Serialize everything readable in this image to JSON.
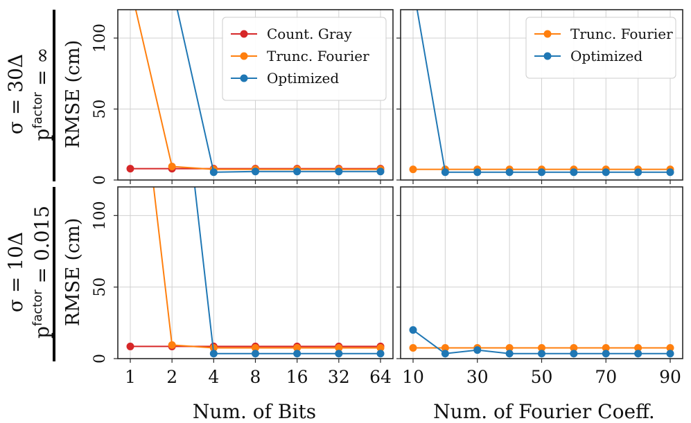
{
  "figure": {
    "row_labels": [
      {
        "line1": "σ = 30Δ",
        "line2": "p",
        "line2_sup": "factor",
        "line2_tail": " = ∞"
      },
      {
        "line1": "σ = 10Δ",
        "line2": "p",
        "line2_sup": "factor",
        "line2_tail": " = 0.015"
      }
    ],
    "ylabel": "RMSE (cm)",
    "xlabel_left": "Num. of Bits",
    "xlabel_right": "Num. of Fourier Coeff.",
    "colors": {
      "count_gray": "#d62728",
      "trunc_fourier": "#ff7f0e",
      "optimized": "#1f77b4",
      "grid": "#d0d0d0",
      "frame": "#262626"
    }
  },
  "chart_data": [
    {
      "type": "line",
      "panel": "top-left",
      "x_scale": "log2",
      "x": [
        1,
        2,
        4,
        8,
        16,
        32,
        64
      ],
      "xticks": [
        "1",
        "2",
        "4",
        "8",
        "16",
        "32",
        "64"
      ],
      "ylim": [
        0,
        120
      ],
      "yticks": [
        "0",
        "50",
        "100"
      ],
      "grid": true,
      "legend": "top-right",
      "series": [
        {
          "name": "Count. Gray",
          "color": "#d62728",
          "values": [
            8,
            8,
            8,
            8,
            8,
            8,
            8
          ]
        },
        {
          "name": "Trunc. Fourier",
          "color": "#ff7f0e",
          "values": [
            null,
            9.5,
            7.5,
            7.5,
            7.5,
            7.5,
            7.5
          ]
        },
        {
          "name": "Optimized",
          "color": "#1f77b4",
          "values": [
            null,
            null,
            5.5,
            6,
            6,
            6,
            6
          ]
        }
      ],
      "offscale_from": {
        "Trunc. Fourier": 1,
        "Optimized": 2
      }
    },
    {
      "type": "line",
      "panel": "top-right",
      "x": [
        10,
        20,
        30,
        40,
        50,
        60,
        70,
        80,
        90
      ],
      "xticks": [
        "10",
        "30",
        "50",
        "70",
        "90"
      ],
      "ylim": [
        0,
        120
      ],
      "grid": true,
      "legend": "top-right",
      "series": [
        {
          "name": "Trunc. Fourier",
          "color": "#ff7f0e",
          "values": [
            7.5,
            7.5,
            7.5,
            7.5,
            7.5,
            7.5,
            7.5,
            7.5,
            7.5
          ]
        },
        {
          "name": "Optimized",
          "color": "#1f77b4",
          "values": [
            null,
            5.5,
            5.5,
            5.5,
            5.5,
            5.5,
            5.5,
            5.5,
            5.5
          ]
        }
      ],
      "offscale_from": {
        "Optimized": 10
      }
    },
    {
      "type": "line",
      "panel": "bottom-left",
      "x_scale": "log2",
      "x": [
        1,
        2,
        4,
        8,
        16,
        32,
        64
      ],
      "xticks": [
        "1",
        "2",
        "4",
        "8",
        "16",
        "32",
        "64"
      ],
      "ylim": [
        0,
        120
      ],
      "yticks": [
        "0",
        "50",
        "100"
      ],
      "grid": true,
      "series": [
        {
          "name": "Count. Gray",
          "color": "#d62728",
          "values": [
            8.5,
            8.5,
            8.5,
            8.5,
            8.5,
            8.5,
            8.5
          ]
        },
        {
          "name": "Trunc. Fourier",
          "color": "#ff7f0e",
          "values": [
            null,
            9.5,
            7.5,
            7.5,
            7.5,
            7.5,
            7.5
          ]
        },
        {
          "name": "Optimized",
          "color": "#1f77b4",
          "values": [
            null,
            null,
            3.5,
            3.5,
            3.5,
            3.5,
            3.5
          ]
        }
      ],
      "offscale_from": {
        "Trunc. Fourier": 1,
        "Optimized": 2
      }
    },
    {
      "type": "line",
      "panel": "bottom-right",
      "x": [
        10,
        20,
        30,
        40,
        50,
        60,
        70,
        80,
        90
      ],
      "xticks": [
        "10",
        "30",
        "50",
        "70",
        "90"
      ],
      "ylim": [
        0,
        120
      ],
      "grid": true,
      "series": [
        {
          "name": "Trunc. Fourier",
          "color": "#ff7f0e",
          "values": [
            7.5,
            7.5,
            7.5,
            7.5,
            7.5,
            7.5,
            7.5,
            7.5,
            7.5
          ]
        },
        {
          "name": "Optimized",
          "color": "#1f77b4",
          "values": [
            20,
            3.5,
            6,
            3.5,
            3.5,
            3.5,
            3.5,
            3.5,
            3.5
          ]
        }
      ]
    }
  ]
}
